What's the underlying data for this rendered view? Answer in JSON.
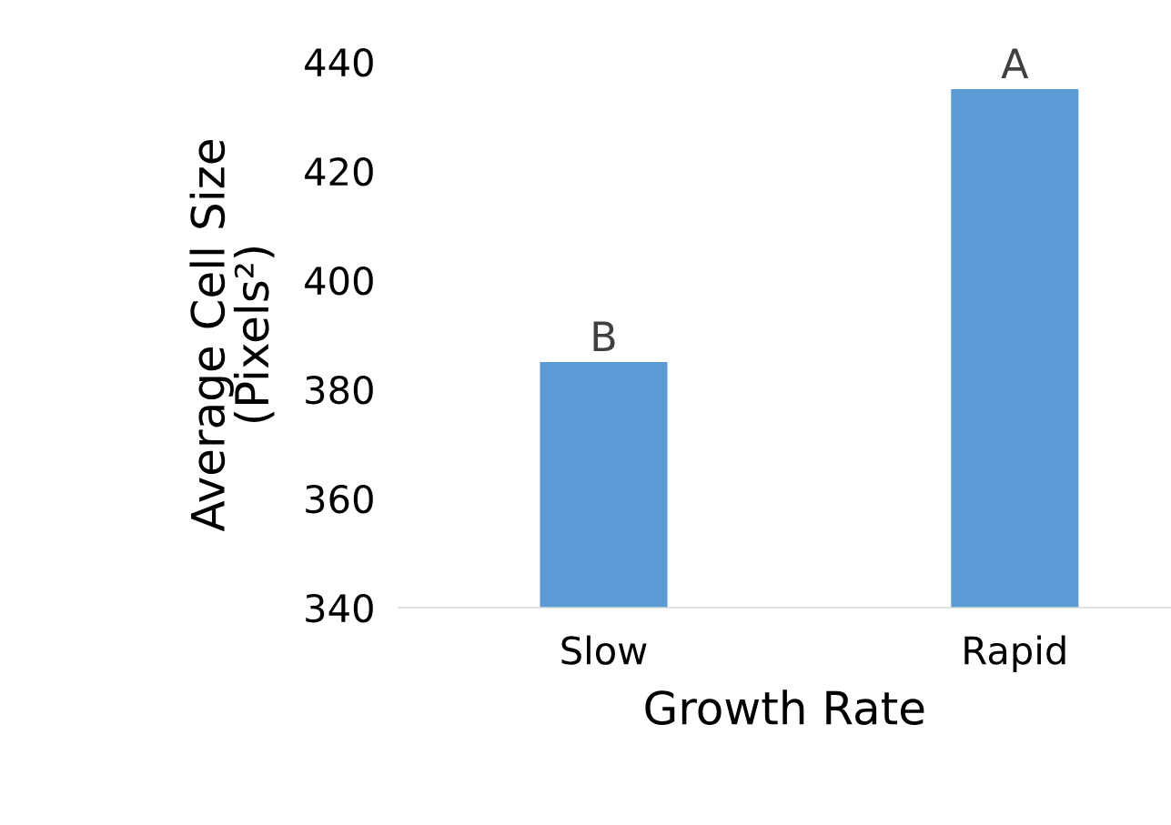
{
  "chart_data": {
    "type": "bar",
    "xlabel": "Growth Rate",
    "ylabel": "Average Cell Size\n(Pixels²)",
    "categories": [
      "Slow",
      "Rapid"
    ],
    "values": [
      385,
      435
    ],
    "color": "#5b9bd5",
    "ylim": [
      340,
      440
    ],
    "yticks": [
      340,
      360,
      380,
      400,
      420,
      440
    ],
    "grid": false,
    "legend": false,
    "annotations": [
      {
        "text": "B",
        "x": "Slow",
        "y": 385
      },
      {
        "text": "A",
        "x": "Rapid",
        "y": 435
      }
    ]
  }
}
